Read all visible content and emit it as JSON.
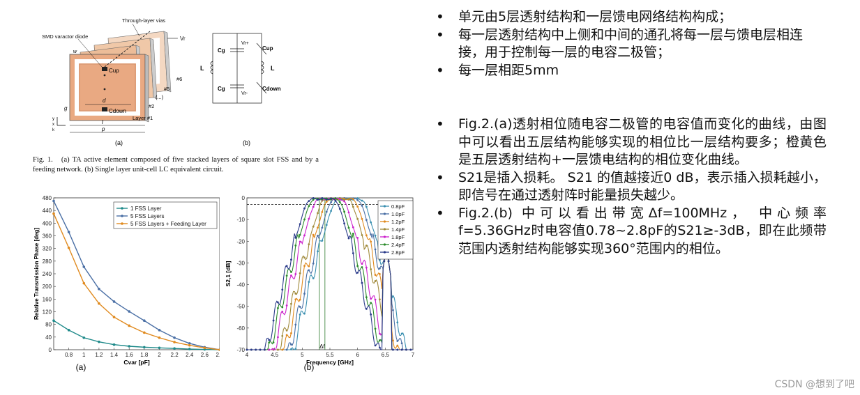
{
  "fig1": {
    "labels": {
      "through_layer_vias": "Through-layer vias",
      "smd_varactor_diode": "SMD varactor diode",
      "vr": "Vr",
      "layer6": "#6",
      "layer5": "#5",
      "dots": "(...)",
      "layer2": "#2",
      "layer1": "Layer #1",
      "w": "w",
      "cup": "Cup",
      "cdown": "Cdown",
      "d": "d",
      "g": "g",
      "l": "l",
      "p": "p",
      "sub_a": "(a)",
      "sub_b": "(b)",
      "cg_top": "Cg",
      "cg_bottom": "Cg",
      "l_left": "L",
      "l_right": "L",
      "vrplus": "Vr+",
      "vrminus": "Vr-",
      "cup_b": "Cup",
      "cdown_b": "Cdown",
      "axis_y": "y",
      "axis_x": "x",
      "axis_k": "k"
    },
    "caption": {
      "lead": "Fig. 1.",
      "text": "(a) TA active element composed of five stacked layers of square slot FSS and by a feeding network. (b) Single layer unit-cell LC equivalent circuit."
    }
  },
  "chart_data": [
    {
      "type": "line",
      "xlabel": "Cvar [pF]",
      "ylabel": "Relative Transmission Phase [deg]",
      "xlim": [
        0.6,
        2.8
      ],
      "ylim": [
        0,
        480
      ],
      "xticks": [
        "0.8",
        "1",
        "1.2",
        "1.4",
        "1.6",
        "1.8",
        "2",
        "2.2",
        "2.4",
        "2.6",
        "2.8"
      ],
      "yticks": [
        "0",
        "40",
        "80",
        "120",
        "160",
        "200",
        "240",
        "280",
        "320",
        "360",
        "400",
        "440",
        "480"
      ],
      "legend_position": "top-right",
      "x": [
        0.6,
        0.8,
        1.0,
        1.2,
        1.4,
        1.6,
        1.8,
        2.0,
        2.2,
        2.4,
        2.6,
        2.8
      ],
      "series": [
        {
          "name": "1 FSS Layer",
          "color": "#1f8a8a",
          "values": [
            92,
            62,
            38,
            25,
            16,
            11,
            8,
            6,
            4,
            2,
            1,
            0
          ]
        },
        {
          "name": "5 FSS Layers",
          "color": "#4a6fa5",
          "values": [
            470,
            372,
            262,
            192,
            152,
            121,
            92,
            62,
            38,
            20,
            8,
            0
          ]
        },
        {
          "name": "5 FSS Layers + Feeding Layer",
          "color": "#e08a1e",
          "values": [
            430,
            322,
            210,
            146,
            103,
            76,
            54,
            38,
            24,
            14,
            6,
            0
          ]
        }
      ],
      "sublabel": "(a)"
    },
    {
      "type": "line",
      "xlabel": "Frequency [GHz]",
      "ylabel": "S2,1 [dB]",
      "xlim": [
        4,
        7
      ],
      "ylim": [
        -70,
        0
      ],
      "xticks": [
        "4",
        "4.5",
        "5",
        "5.5",
        "6",
        "6.5",
        "7"
      ],
      "yticks": [
        "0",
        "-10",
        "-20",
        "-30",
        "-40",
        "-50",
        "-60",
        "-70"
      ],
      "reference_level_db": -3,
      "band_annotation": "Δf",
      "band_ghz": [
        5.31,
        5.41
      ],
      "legend_position": "top-right",
      "series": [
        {
          "name": "0.8pF",
          "color": "#3a8fb0",
          "center_ghz": 5.85
        },
        {
          "name": "1.0pF",
          "color": "#4a6fa5",
          "center_ghz": 5.78
        },
        {
          "name": "1.2pF",
          "color": "#e08a1e",
          "center_ghz": 5.7
        },
        {
          "name": "1.4pF",
          "color": "#a08a3a",
          "center_ghz": 5.62
        },
        {
          "name": "1.8pF",
          "color": "#cc22cc",
          "center_ghz": 5.5
        },
        {
          "name": "2.4pF",
          "color": "#2a8a2a",
          "center_ghz": 5.42
        },
        {
          "name": "2.8pF",
          "color": "#2a3a8a",
          "center_ghz": 5.36
        }
      ],
      "sublabel": "(b)"
    }
  ],
  "bullets_top": [
    "单元由5层透射结构和一层馈电网络结构构成；",
    "每一层透射结构中上侧和中间的通孔将每一层与馈电层相连接，用于控制每一层的电容二极管；",
    "每一层相距5mm"
  ],
  "bullets_bottom": [
    "Fig.2.(a)透射相位随电容二极管的电容值而变化的曲线，由图中可以看出五层结构能够实现的相位比一层结构要多；橙黄色是五层透射结构+一层馈电结构的相位变化曲线。",
    "S21是插入损耗。 S21 的值越接近0 dB，表示插入损耗越小，即信号在通过透射阵时能量损失越少。",
    "Fig.2.(b) 中可以看出带宽Δf=100MHz， 中心频率f=5.36GHz时电容值0.78~2.8pF的S21≥-3dB，即在此频带范围内透射结构能够实现360°范围内的相位。"
  ],
  "watermark": "CSDN @想到了吧"
}
